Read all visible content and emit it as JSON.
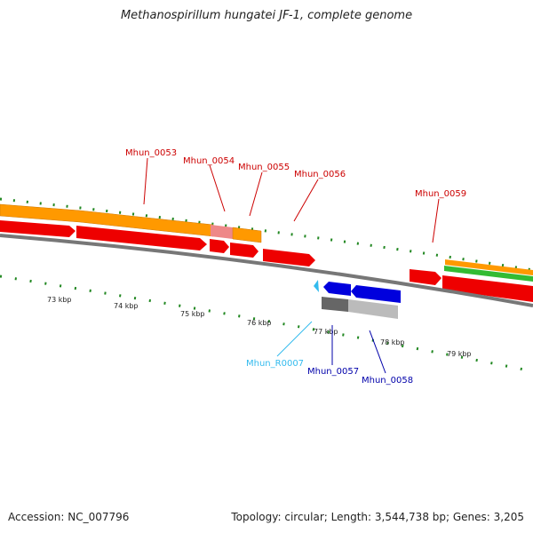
{
  "title": "Methanospirillum hungatei JF-1, complete genome",
  "footer": {
    "accession": "Accession: NC_007796",
    "summary": "Topology: circular; Length: 3,544,738 bp; Genes: 3,205"
  },
  "colors": {
    "cds": "#ee0000",
    "gene_orange": "#ff9900",
    "gene_pink": "#ee8888",
    "rna": "#33bbee",
    "blue_cds": "#0000dd",
    "gray_gene": "#aaaaaa",
    "green": "#33bb33",
    "ticks": "#228822",
    "label_red": "#cc0000",
    "label_blue": "#0000aa",
    "label_cyan": "#33bbee"
  },
  "ticks": [
    "73 kbp",
    "74 kbp",
    "75 kbp",
    "76 kbp",
    "77 kbp",
    "78 kbp",
    "79 kbp"
  ],
  "labels": {
    "forward": [
      "Mhun_0053",
      "Mhun_0054",
      "Mhun_0055",
      "Mhun_0056",
      "Mhun_0059"
    ],
    "reverse": [
      "Mhun_R0007",
      "Mhun_0057",
      "Mhun_0058"
    ]
  }
}
